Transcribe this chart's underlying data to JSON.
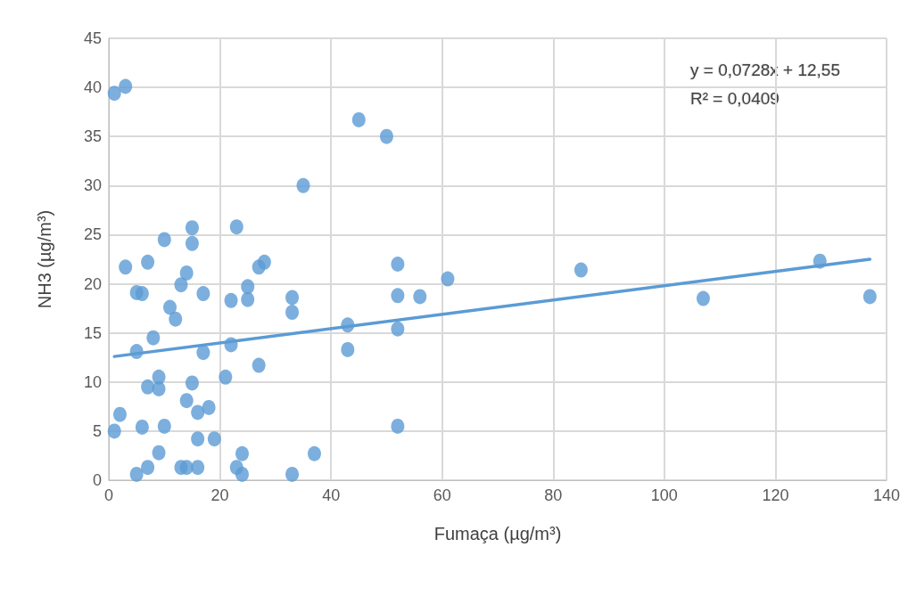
{
  "chart_data": {
    "type": "scatter",
    "xlabel": "Fumaça (µg/m³)",
    "ylabel": "NH3 (µg/m³)",
    "xlim": [
      0,
      140
    ],
    "xticks": [
      0,
      20,
      40,
      60,
      80,
      100,
      120,
      140
    ],
    "ylim": [
      0,
      45
    ],
    "yticks": [
      0,
      5,
      10,
      15,
      20,
      25,
      30,
      35,
      40,
      45
    ],
    "grid": true,
    "marker": "circle",
    "annotations": [
      "y = 0,0728x + 12,55\nR² = 0,0409"
    ],
    "series": [
      {
        "color": "#5b9bd5",
        "x": [
          1,
          3,
          45,
          50,
          35,
          15,
          23,
          10,
          15,
          3,
          7,
          28,
          27,
          14,
          13,
          5,
          6,
          17,
          25,
          22,
          25,
          33,
          33,
          52,
          52,
          56,
          61,
          85,
          128,
          137,
          107,
          11,
          12,
          8,
          5,
          17,
          22,
          43,
          52,
          43,
          27,
          21,
          9,
          7,
          9,
          15,
          14,
          18,
          16,
          2,
          10,
          6,
          1,
          52,
          16,
          19,
          9,
          24,
          37,
          7,
          13,
          14,
          16,
          23,
          5,
          24,
          33
        ],
        "values": [
          39.4,
          40.1,
          36.7,
          35.0,
          30.0,
          25.7,
          25.8,
          24.5,
          24.1,
          21.7,
          22.2,
          22.2,
          21.7,
          21.1,
          19.9,
          19.1,
          19.0,
          19.0,
          19.7,
          18.3,
          18.4,
          18.6,
          17.1,
          22.0,
          18.8,
          18.7,
          20.5,
          21.4,
          22.3,
          18.7,
          18.5,
          17.6,
          16.4,
          14.5,
          13.1,
          13.0,
          13.8,
          15.8,
          15.4,
          13.3,
          11.7,
          10.5,
          10.5,
          9.5,
          9.3,
          9.9,
          8.1,
          7.4,
          6.9,
          6.7,
          5.5,
          5.4,
          5.0,
          5.5,
          4.2,
          4.2,
          2.8,
          2.7,
          2.7,
          1.3,
          1.3,
          1.3,
          1.3,
          1.3,
          0.6,
          0.6,
          0.6
        ]
      },
      {
        "type": "line",
        "color": "#5b9bd5",
        "marker": "none",
        "line_style": "solid",
        "x": [
          1,
          137
        ],
        "values": [
          12.6,
          22.5
        ]
      }
    ]
  }
}
